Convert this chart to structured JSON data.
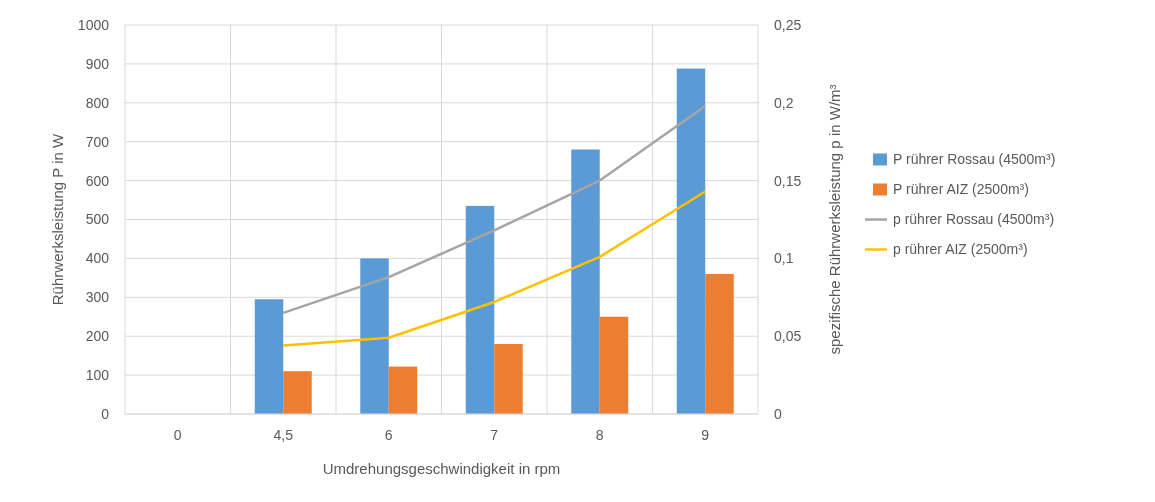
{
  "chart_data": {
    "type": "bar",
    "categories": [
      "0",
      "4,5",
      "6",
      "7",
      "8",
      "9"
    ],
    "xlabel": "Umdrehungsgeschwindigkeit in rpm",
    "ylabel": "Rührwerksleistung P in W",
    "y2label": "spezifische Rührwerksleistung p in W/m³",
    "series": [
      {
        "name": "P rührer Rossau (4500m³)",
        "color": "#5b9bd5",
        "values": [
          0,
          295,
          400,
          535,
          680,
          888
        ]
      },
      {
        "name": "P rührer AIZ (2500m³)",
        "color": "#ed7d31",
        "values": [
          0,
          110,
          122,
          180,
          250,
          360
        ]
      },
      {
        "name": "p rührer Rossau (4500m³)",
        "type": "line",
        "axis": "y2",
        "color": "#a5a5a5",
        "values": [
          null,
          0.065,
          0.088,
          0.118,
          0.15,
          0.198
        ]
      },
      {
        "name": "p rührer AIZ (2500m³)",
        "type": "line",
        "axis": "y2",
        "color": "#ffc000",
        "values": [
          null,
          0.044,
          0.049,
          0.072,
          0.101,
          0.143
        ]
      }
    ],
    "ylim": [
      0,
      1000
    ],
    "yticks": [
      0,
      100,
      200,
      300,
      400,
      500,
      600,
      700,
      800,
      900,
      1000
    ],
    "y2lim": [
      0,
      0.25
    ],
    "y2ticks": [
      0,
      {
        "value": 0.05,
        "label": "0,05"
      },
      {
        "value": 0.1,
        "label": "0,1"
      },
      {
        "value": 0.15,
        "label": "0,15"
      },
      {
        "value": 0.2,
        "label": "0,2"
      },
      {
        "value": 0.25,
        "label": "0,25"
      }
    ],
    "grid": true,
    "legend": "right",
    "marker": "none",
    "line_style": "solid"
  }
}
